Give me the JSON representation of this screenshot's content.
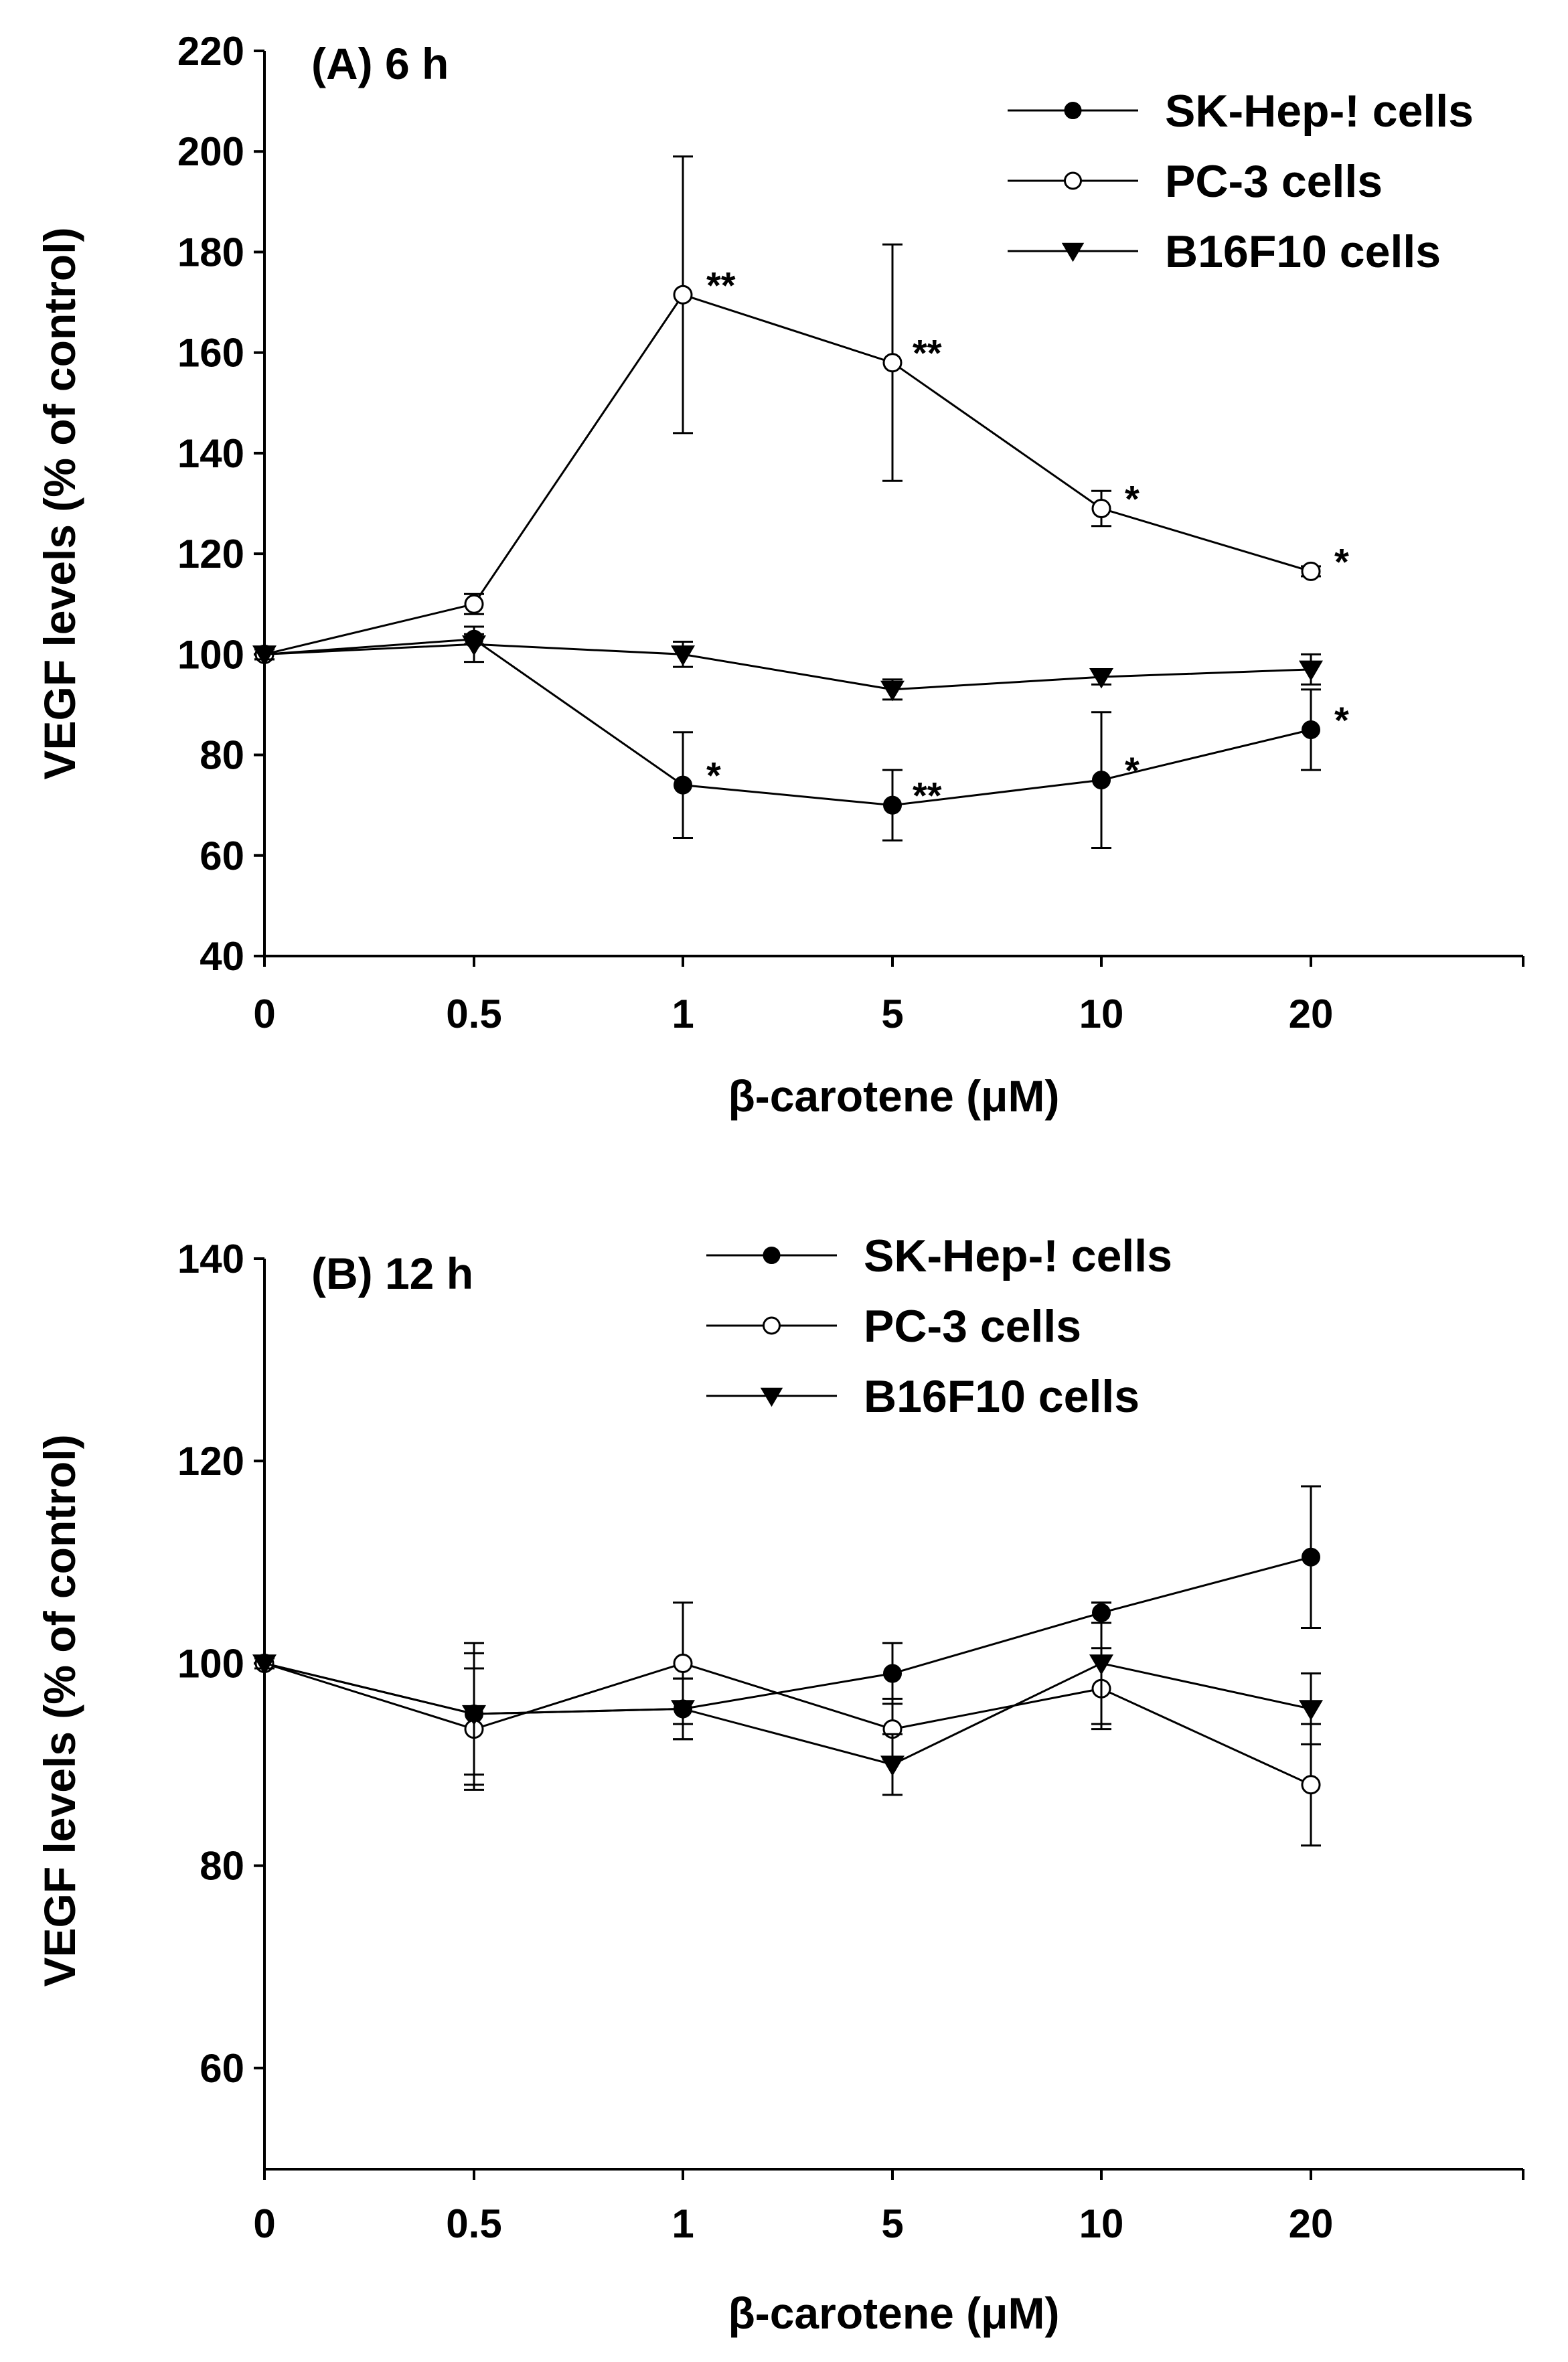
{
  "chart_data": [
    {
      "type": "line",
      "title": "(A) 6 h",
      "xlabel": "β-carotene (μM)",
      "ylabel": "VEGF levels (% of control)",
      "categories": [
        "0",
        "0.5",
        "1",
        "5",
        "10",
        "20"
      ],
      "ylim": [
        40,
        220
      ],
      "yticks": [
        40,
        60,
        80,
        100,
        120,
        140,
        160,
        180,
        200,
        220
      ],
      "series": [
        {
          "name": "SK-Hep-! cells",
          "marker": "filled-circle",
          "values": [
            100,
            103,
            74,
            70,
            75,
            85
          ],
          "errors": [
            1,
            1,
            10.5,
            7,
            13.5,
            8
          ],
          "significance": [
            "",
            "",
            "*",
            "**",
            "*",
            "*"
          ]
        },
        {
          "name": "PC-3 cells",
          "marker": "open-circle",
          "values": [
            100,
            110,
            171.5,
            158,
            129,
            116.5
          ],
          "errors": [
            1,
            2,
            27.5,
            23.5,
            3.5,
            1
          ],
          "significance": [
            "",
            "",
            "**",
            "**",
            "*",
            "*"
          ]
        },
        {
          "name": "B16F10 cells",
          "marker": "filled-triangle-down",
          "values": [
            100,
            102,
            100,
            93,
            95.5,
            97
          ],
          "errors": [
            1,
            3.5,
            2.5,
            2,
            1.5,
            3
          ],
          "significance": [
            "",
            "",
            "",
            "",
            "",
            ""
          ]
        }
      ]
    },
    {
      "type": "line",
      "title": "(B) 12 h",
      "xlabel": "β-carotene (μM)",
      "ylabel": "VEGF levels (% of control)",
      "categories": [
        "0",
        "0.5",
        "1",
        "5",
        "10",
        "20"
      ],
      "ylim": [
        50,
        140
      ],
      "yticks": [
        60,
        80,
        100,
        120,
        140
      ],
      "series": [
        {
          "name": "SK-Hep-! cells",
          "marker": "filled-circle",
          "values": [
            100,
            95,
            95.5,
            99,
            105,
            110.5
          ],
          "errors": [
            0.5,
            7,
            3,
            3,
            1,
            7
          ],
          "significance": [
            "",
            "",
            "",
            "",
            "",
            ""
          ]
        },
        {
          "name": "PC-3 cells",
          "marker": "open-circle",
          "values": [
            100,
            93.5,
            100,
            93.5,
            97.5,
            88
          ],
          "errors": [
            0.5,
            6,
            6,
            3,
            4,
            6
          ],
          "significance": [
            "",
            "",
            "",
            "",
            "",
            ""
          ]
        },
        {
          "name": "B16F10 cells",
          "marker": "filled-triangle-down",
          "values": [
            100,
            95,
            95.5,
            90,
            100,
            95.5
          ],
          "errors": [
            0.5,
            6,
            3,
            3,
            6,
            3.5
          ],
          "significance": [
            "",
            "",
            "",
            "",
            "",
            ""
          ]
        }
      ]
    }
  ]
}
